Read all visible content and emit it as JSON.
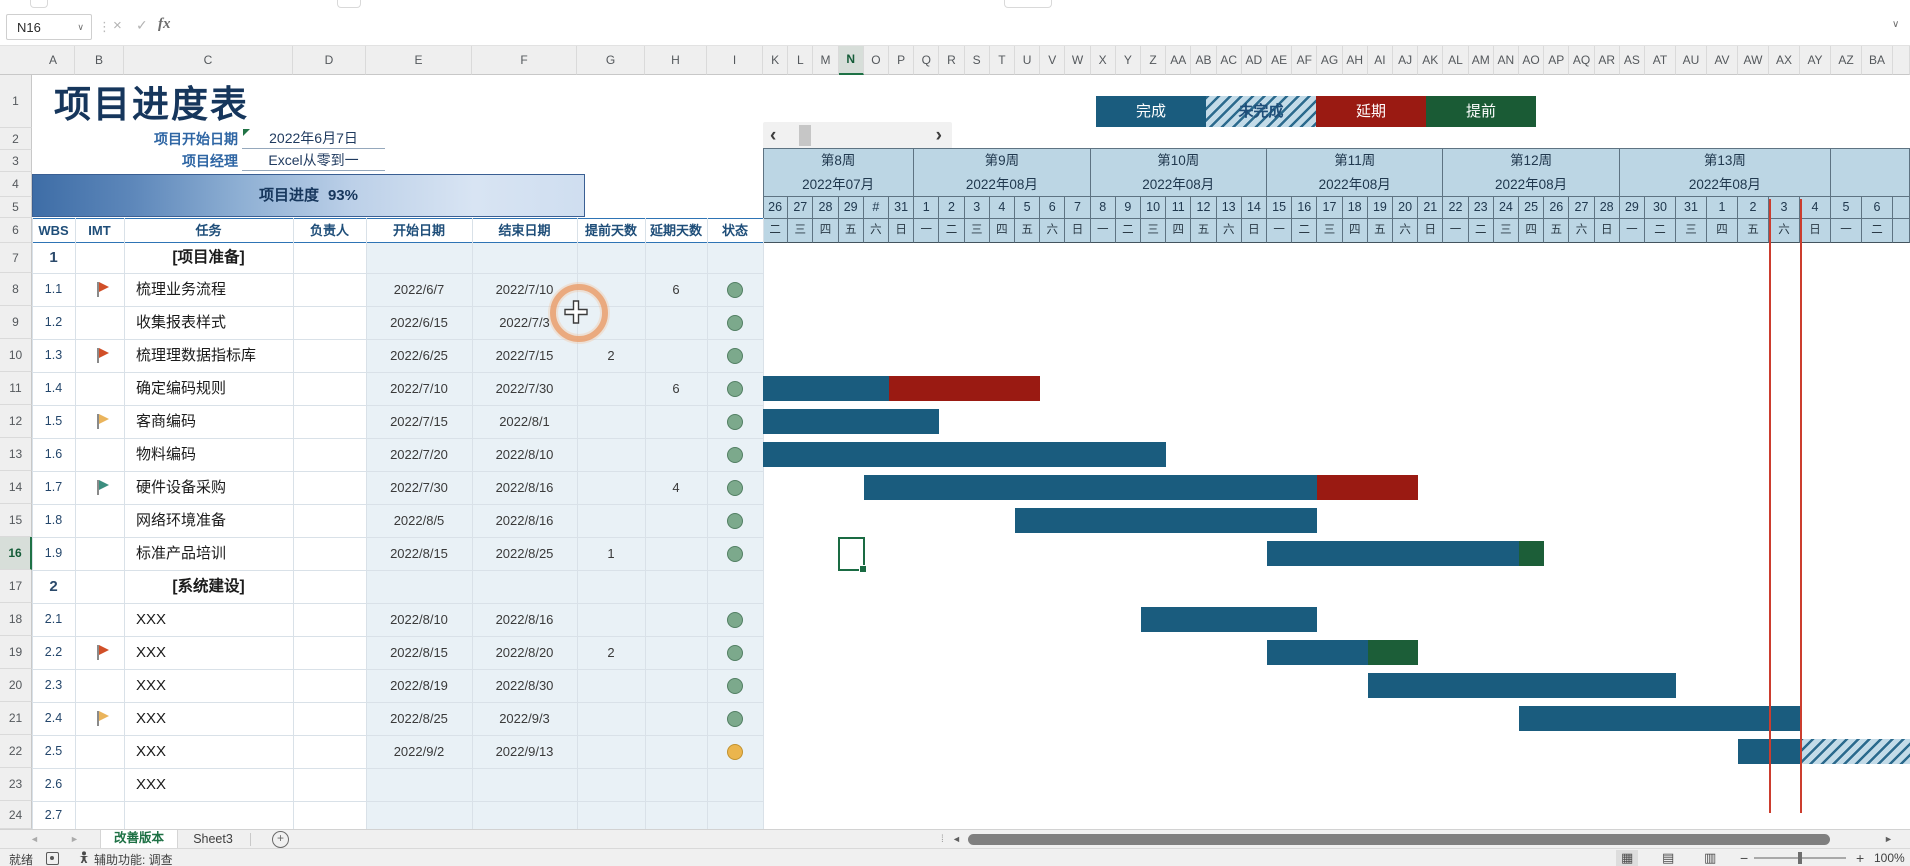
{
  "formula_bar": {
    "name_box": "N16",
    "value": ""
  },
  "icons": {
    "cancel": "×",
    "enter": "✓",
    "fx": "fx",
    "dropdown": "∨",
    "grip": "⋮",
    "expand": "∨",
    "tab_prev": "◄",
    "tab_next": "►",
    "scroll_left": "‹",
    "scroll_right": "›",
    "add_sheet": "+",
    "hscroll_left": "◄",
    "hscroll_right": "►",
    "grip_dots": "⁞",
    "view_normal": "▦",
    "view_layout": "▤",
    "view_break": "▥",
    "zoom_out": "−",
    "zoom_in": "+"
  },
  "title": "项目进度表",
  "info_rows": [
    {
      "label": "项目开始日期",
      "value": "2022年6月7日"
    },
    {
      "label": "项目经理",
      "value": "Excel从零到一"
    }
  ],
  "progress": {
    "label": "项目进度",
    "percent": "93%"
  },
  "legend": [
    {
      "label": "完成",
      "type": "done"
    },
    {
      "label": "未完成",
      "type": "todo"
    },
    {
      "label": "延期",
      "type": "delay"
    },
    {
      "label": "提前",
      "type": "ahead"
    }
  ],
  "table_headers": [
    "WBS",
    "IMT",
    "任务",
    "负责人",
    "开始日期",
    "结束日期",
    "提前天数",
    "延期天数",
    "状态"
  ],
  "col_letters_left": [
    "A",
    "B",
    "C",
    "D",
    "E",
    "F",
    "G",
    "H",
    "I"
  ],
  "col_letters_gantt": [
    "K",
    "L",
    "M",
    "N",
    "O",
    "P",
    "Q",
    "R",
    "S",
    "T",
    "U",
    "V",
    "W",
    "X",
    "Y",
    "Z",
    "AA",
    "AB",
    "AC",
    "AD",
    "AE",
    "AF",
    "AG",
    "AH",
    "AI",
    "AJ",
    "AK",
    "AL",
    "AM",
    "AN",
    "AO",
    "AP",
    "AQ",
    "AR",
    "AS",
    "AT",
    "AU",
    "AV",
    "AW",
    "AX",
    "AY",
    "AZ",
    "BA"
  ],
  "selected_column": "N",
  "selected_row": "16",
  "selection_cell": "N16",
  "row_numbers": [
    "1",
    "2",
    "3",
    "4",
    "5",
    "6",
    "7",
    "8",
    "9",
    "10",
    "11",
    "12",
    "13",
    "14",
    "15",
    "16",
    "17",
    "18",
    "19",
    "20",
    "21",
    "22",
    "23",
    "24"
  ],
  "weeks": [
    {
      "label": "第8周",
      "month": "2022年07月",
      "s": 0,
      "e": 5
    },
    {
      "label": "第9周",
      "month": "2022年08月",
      "s": 6,
      "e": 12
    },
    {
      "label": "第10周",
      "month": "2022年08月",
      "s": 13,
      "e": 19
    },
    {
      "label": "第11周",
      "month": "2022年08月",
      "s": 20,
      "e": 26
    },
    {
      "label": "第12周",
      "month": "2022年08月",
      "s": 27,
      "e": 33
    },
    {
      "label": "第13周",
      "month": "2022年08月",
      "s": 34,
      "e": 40
    }
  ],
  "days": [
    {
      "n": "26",
      "w": "二"
    },
    {
      "n": "27",
      "w": "三"
    },
    {
      "n": "28",
      "w": "四"
    },
    {
      "n": "29",
      "w": "五"
    },
    {
      "n": "#",
      "w": "六"
    },
    {
      "n": "31",
      "w": "日"
    },
    {
      "n": "1",
      "w": "一"
    },
    {
      "n": "2",
      "w": "二"
    },
    {
      "n": "3",
      "w": "三"
    },
    {
      "n": "4",
      "w": "四"
    },
    {
      "n": "5",
      "w": "五"
    },
    {
      "n": "6",
      "w": "六"
    },
    {
      "n": "7",
      "w": "日"
    },
    {
      "n": "8",
      "w": "一"
    },
    {
      "n": "9",
      "w": "二"
    },
    {
      "n": "10",
      "w": "三"
    },
    {
      "n": "11",
      "w": "四"
    },
    {
      "n": "12",
      "w": "五"
    },
    {
      "n": "13",
      "w": "六"
    },
    {
      "n": "14",
      "w": "日"
    },
    {
      "n": "15",
      "w": "一"
    },
    {
      "n": "16",
      "w": "二"
    },
    {
      "n": "17",
      "w": "三"
    },
    {
      "n": "18",
      "w": "四"
    },
    {
      "n": "19",
      "w": "五"
    },
    {
      "n": "20",
      "w": "六"
    },
    {
      "n": "21",
      "w": "日"
    },
    {
      "n": "22",
      "w": "一"
    },
    {
      "n": "23",
      "w": "二"
    },
    {
      "n": "24",
      "w": "三"
    },
    {
      "n": "25",
      "w": "四"
    },
    {
      "n": "26",
      "w": "五"
    },
    {
      "n": "27",
      "w": "六"
    },
    {
      "n": "28",
      "w": "日"
    },
    {
      "n": "29",
      "w": "一"
    },
    {
      "n": "30",
      "w": "二"
    },
    {
      "n": "31",
      "w": "三"
    },
    {
      "n": "1",
      "w": "四"
    },
    {
      "n": "2",
      "w": "五"
    },
    {
      "n": "3",
      "w": "六"
    },
    {
      "n": "4",
      "w": "日"
    },
    {
      "n": "5",
      "w": "一"
    },
    {
      "n": "6",
      "w": "二"
    }
  ],
  "rows": [
    {
      "num": "7",
      "wbs": "1",
      "task": "[项目准备]",
      "section": true
    },
    {
      "num": "8",
      "wbs": "1.1",
      "flag": "red",
      "task": "梳理业务流程",
      "start": "2022/6/7",
      "end": "2022/7/10",
      "delay": "6",
      "status": "green"
    },
    {
      "num": "9",
      "wbs": "1.2",
      "task": "收集报表样式",
      "start": "2022/6/15",
      "end": "2022/7/3",
      "status": "green"
    },
    {
      "num": "10",
      "wbs": "1.3",
      "flag": "red",
      "task": "梳理理数据指标库",
      "start": "2022/6/25",
      "end": "2022/7/15",
      "ahead": "2",
      "status": "green"
    },
    {
      "num": "11",
      "wbs": "1.4",
      "task": "确定编码规则",
      "start": "2022/7/10",
      "end": "2022/7/30",
      "delay": "6",
      "status": "green",
      "bars": [
        [
          0,
          4,
          "done"
        ],
        [
          5,
          10,
          "delay"
        ]
      ]
    },
    {
      "num": "12",
      "wbs": "1.5",
      "flag": "yellow",
      "task": "客商编码",
      "start": "2022/7/15",
      "end": "2022/8/1",
      "status": "green",
      "bars": [
        [
          0,
          6,
          "done"
        ]
      ]
    },
    {
      "num": "13",
      "wbs": "1.6",
      "task": "物料编码",
      "start": "2022/7/20",
      "end": "2022/8/10",
      "status": "green",
      "bars": [
        [
          0,
          15,
          "done"
        ]
      ]
    },
    {
      "num": "14",
      "wbs": "1.7",
      "flag": "teal",
      "task": "硬件设备采购",
      "start": "2022/7/30",
      "end": "2022/8/16",
      "delay": "4",
      "status": "green",
      "bars": [
        [
          4,
          21,
          "done"
        ],
        [
          22,
          25,
          "delay"
        ]
      ]
    },
    {
      "num": "15",
      "wbs": "1.8",
      "task": "网络环境准备",
      "start": "2022/8/5",
      "end": "2022/8/16",
      "status": "green",
      "bars": [
        [
          10,
          21,
          "done"
        ]
      ]
    },
    {
      "num": "16",
      "wbs": "1.9",
      "task": "标准产品培训",
      "start": "2022/8/15",
      "end": "2022/8/25",
      "ahead": "1",
      "status": "green",
      "bars": [
        [
          20,
          29,
          "done"
        ],
        [
          30,
          30,
          "ahead"
        ]
      ]
    },
    {
      "num": "17",
      "wbs": "2",
      "task": "[系统建设]",
      "section": true
    },
    {
      "num": "18",
      "wbs": "2.1",
      "task": "XXX",
      "start": "2022/8/10",
      "end": "2022/8/16",
      "status": "green",
      "bars": [
        [
          15,
          21,
          "done"
        ]
      ]
    },
    {
      "num": "19",
      "wbs": "2.2",
      "flag": "red",
      "task": "XXX",
      "start": "2022/8/15",
      "end": "2022/8/20",
      "ahead": "2",
      "status": "green",
      "bars": [
        [
          20,
          23,
          "done"
        ],
        [
          24,
          25,
          "ahead"
        ]
      ]
    },
    {
      "num": "20",
      "wbs": "2.3",
      "task": "XXX",
      "start": "2022/8/19",
      "end": "2022/8/30",
      "status": "green",
      "bars": [
        [
          24,
          35,
          "done"
        ]
      ]
    },
    {
      "num": "21",
      "wbs": "2.4",
      "flag": "yellow",
      "task": "XXX",
      "start": "2022/8/25",
      "end": "2022/9/3",
      "status": "green",
      "bars": [
        [
          30,
          39,
          "done"
        ]
      ]
    },
    {
      "num": "22",
      "wbs": "2.5",
      "task": "XXX",
      "start": "2022/9/2",
      "end": "2022/9/13",
      "status": "amber",
      "bars": [
        [
          38,
          39,
          "done"
        ],
        [
          40,
          46,
          "todo"
        ]
      ]
    },
    {
      "num": "23",
      "wbs": "2.6",
      "task": "XXX"
    },
    {
      "num": "24",
      "wbs": "2.7"
    }
  ],
  "gantt_marker": {
    "day_start": 39,
    "day_end": 40
  },
  "selection": {
    "cell": "N16",
    "day_index": 3,
    "row": "16"
  },
  "tabs": {
    "active": "改善版本",
    "others": [
      "Sheet3"
    ]
  },
  "status_bar": {
    "ready": "就绪",
    "accessibility": "辅助功能: 调查",
    "zoom": "100%"
  }
}
